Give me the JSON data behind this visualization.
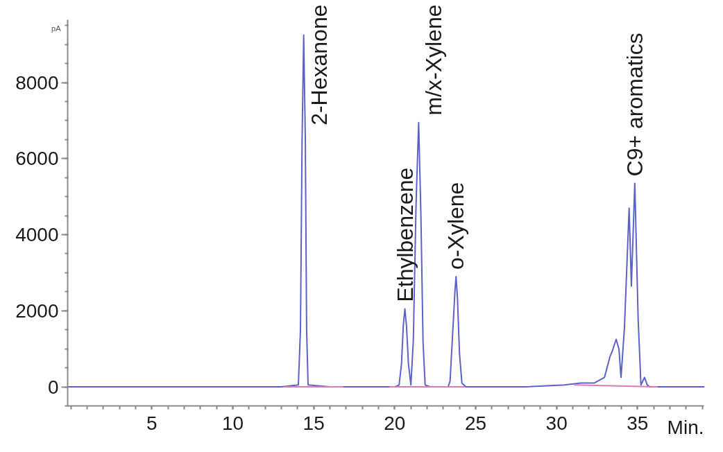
{
  "chart_data": {
    "type": "line",
    "xlabel": "Min.",
    "ylabel": "pA",
    "xlim": [
      -0.2,
      39.1
    ],
    "xticks": [
      5,
      10,
      15,
      20,
      25,
      30,
      35
    ],
    "ylim": [
      -500,
      9650
    ],
    "yticks": [
      0,
      2000,
      4000,
      6000,
      8000
    ],
    "grid": false,
    "line_style": "solid",
    "series": [
      {
        "color": "#5b63c9",
        "x": [
          -0.2,
          5,
          10,
          13.0,
          14.05,
          14.18,
          14.28,
          14.38,
          14.48,
          14.56,
          14.65,
          16.0,
          20.0,
          20.27,
          20.42,
          20.53,
          20.63,
          20.73,
          20.85,
          21.0,
          21.15,
          21.32,
          21.48,
          21.62,
          21.75,
          21.88,
          22.2,
          23.3,
          23.42,
          23.58,
          23.72,
          23.79,
          23.88,
          24.0,
          24.15,
          24.4,
          28.0,
          30.5,
          31.5,
          32.32,
          32.96,
          33.3,
          33.45,
          33.68,
          33.85,
          33.98,
          34.19,
          34.48,
          34.62,
          34.83,
          35.04,
          35.21,
          35.43,
          35.6,
          35.77,
          39.1
        ],
        "values": [
          0,
          0,
          0,
          0,
          50,
          1500,
          6500,
          9250,
          6500,
          1500,
          50,
          0,
          0,
          50,
          600,
          1600,
          2050,
          1600,
          600,
          50,
          1200,
          4800,
          6950,
          4500,
          1200,
          50,
          0,
          0,
          150,
          1400,
          2500,
          2900,
          2300,
          900,
          100,
          0,
          0,
          50,
          100,
          100,
          250,
          800,
          950,
          1250,
          1000,
          250,
          1550,
          4700,
          2650,
          5350,
          1750,
          50,
          250,
          50,
          0,
          0
        ]
      },
      {
        "color": "#d77fb5",
        "x": [
          13.2,
          16.8,
          18.0,
          19.7,
          24.3,
          27.0,
          31.1,
          36.2
        ],
        "values": [
          0,
          0,
          null,
          0,
          0,
          null,
          50,
          0
        ]
      }
    ],
    "annotations": [
      {
        "text": "2-Hexanone",
        "x": 14.38,
        "y": 9250
      },
      {
        "text": "Ethylbenzene",
        "x": 20.63,
        "y": 2050
      },
      {
        "text": "m/x-Xylene",
        "x": 21.48,
        "y": 6950
      },
      {
        "text": "o-Xylene",
        "x": 23.79,
        "y": 2900
      },
      {
        "text": "C9+ aromatics",
        "x": 34.83,
        "y": 5350
      }
    ]
  }
}
